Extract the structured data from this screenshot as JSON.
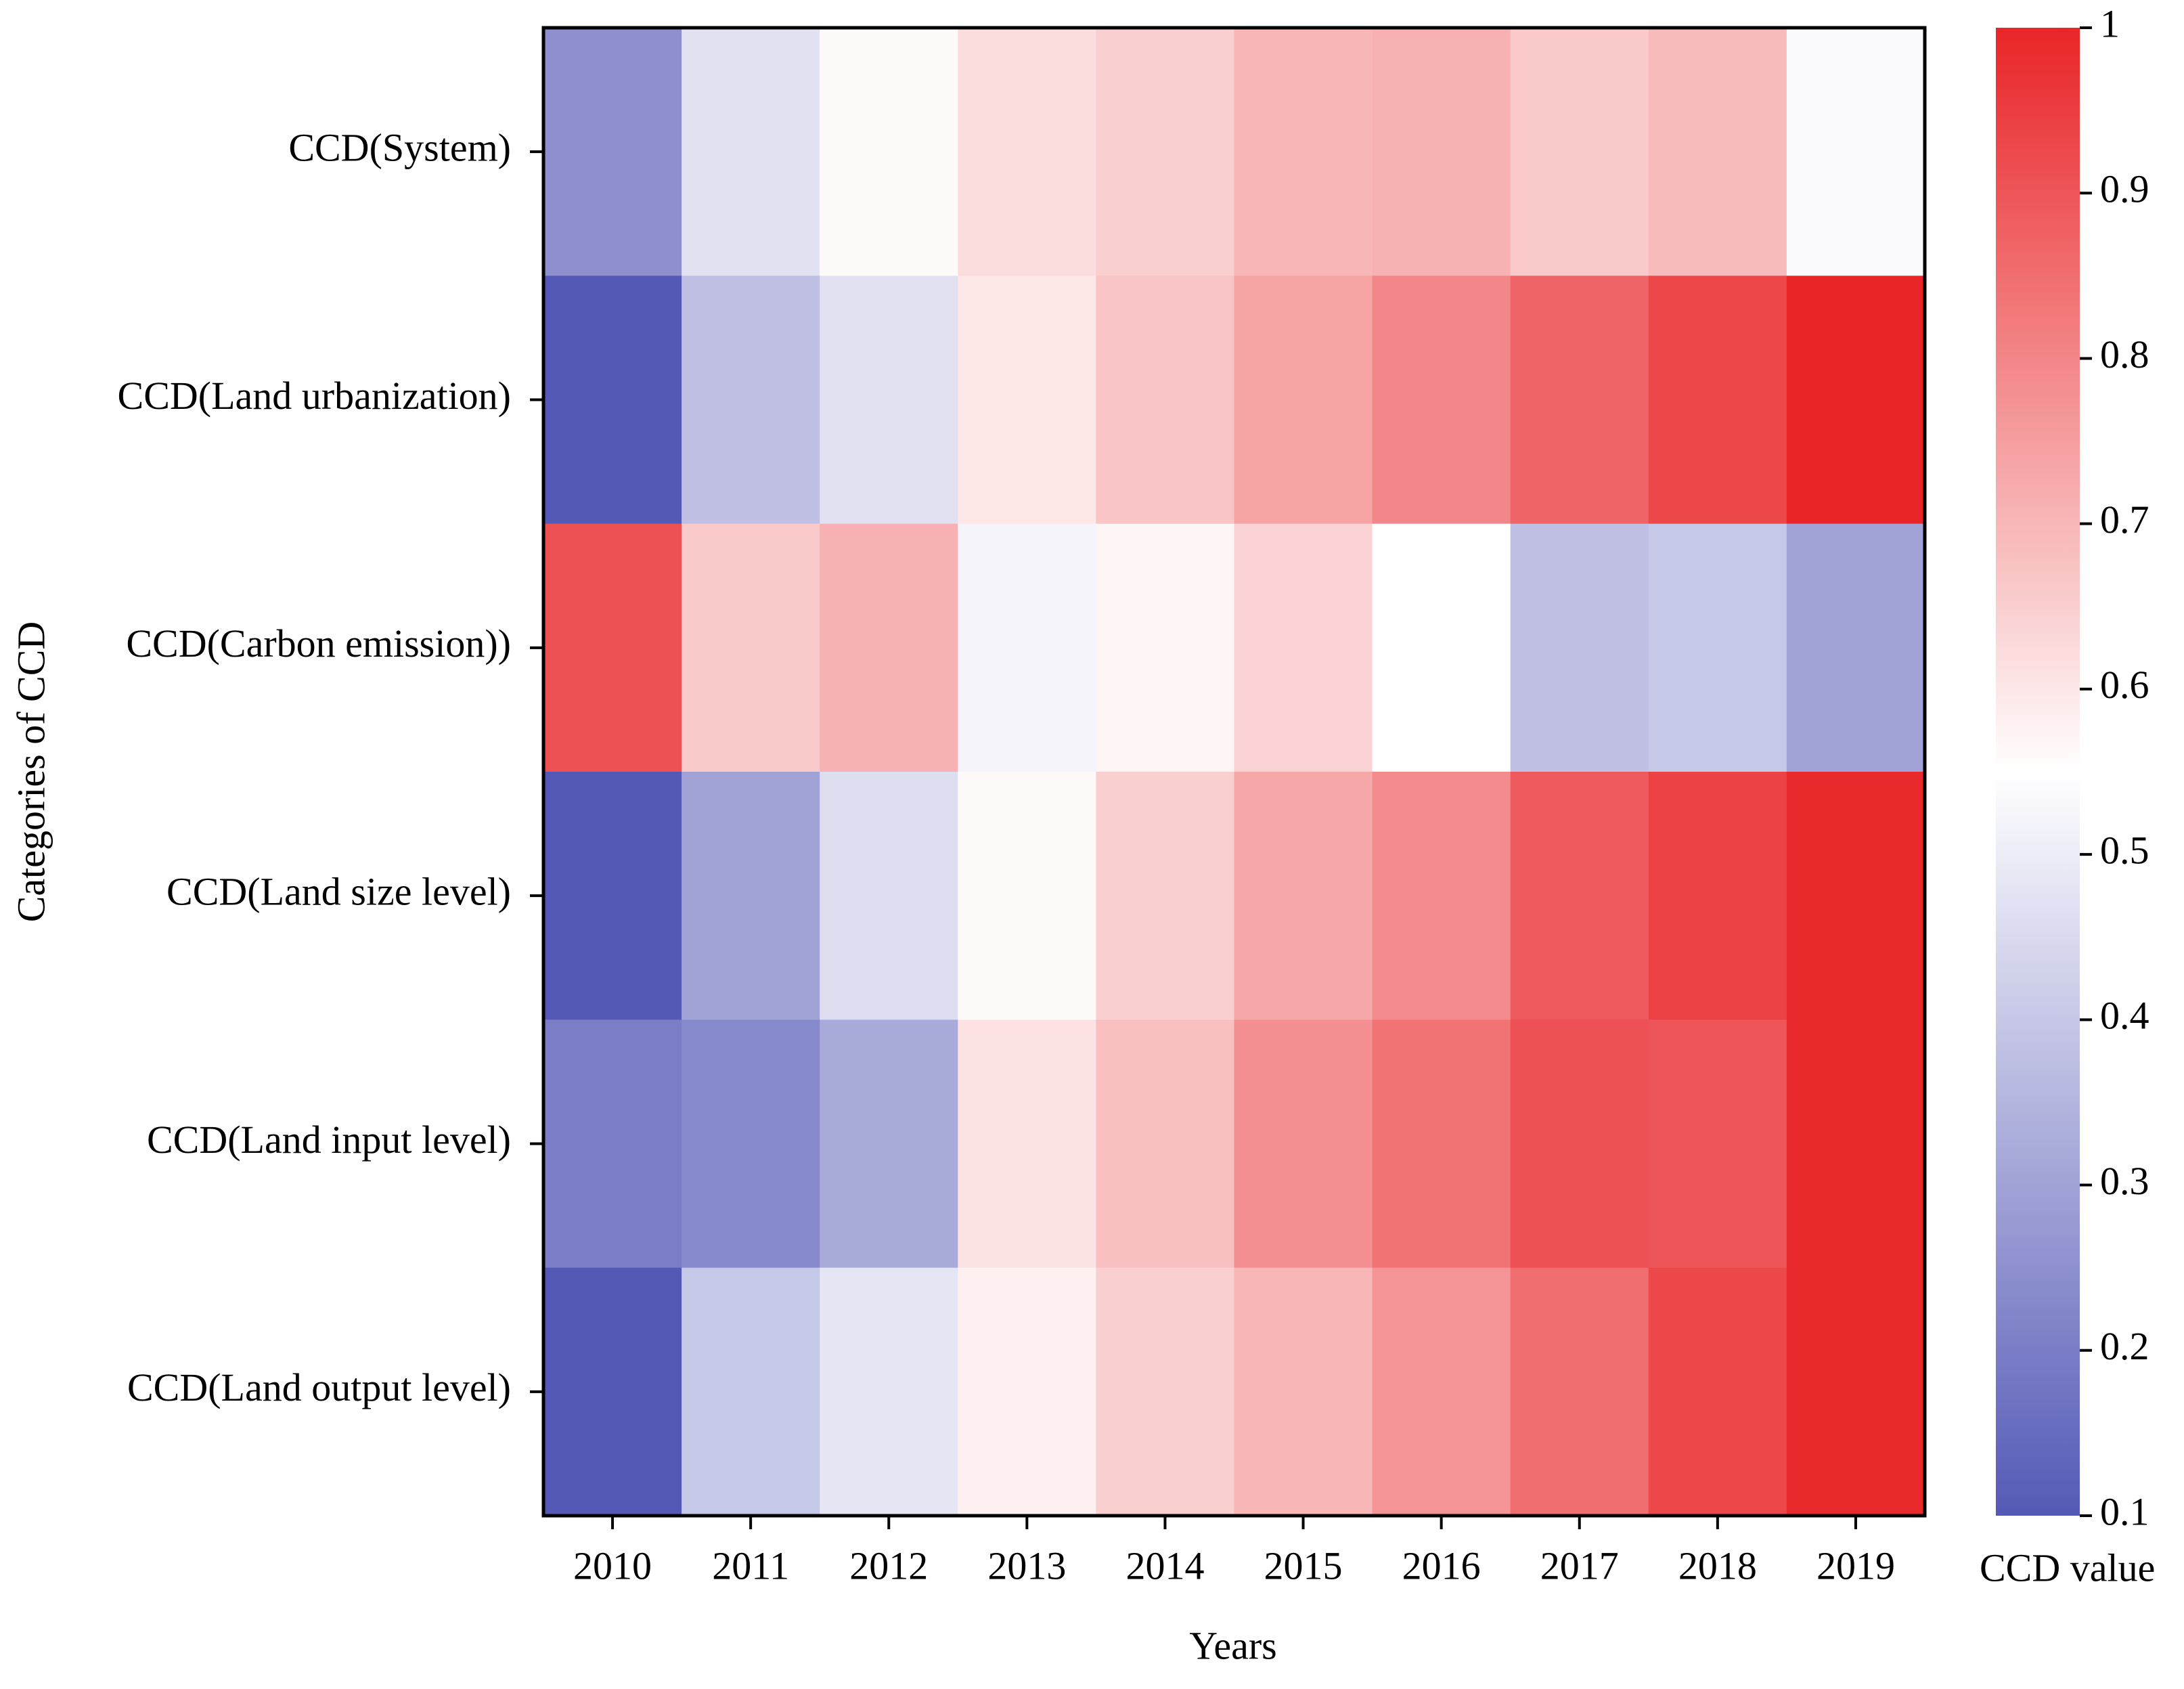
{
  "chart_data": {
    "type": "heatmap",
    "xlabel": "Years",
    "ylabel": "Categories of CCD",
    "x": [
      "2010",
      "2011",
      "2012",
      "2013",
      "2014",
      "2015",
      "2016",
      "2017",
      "2018",
      "2019"
    ],
    "y": [
      "CCD(System)",
      "CCD(Land urbanization)",
      "CCD(Carbon emission))",
      "CCD(Land size level)",
      "CCD(Land input level)",
      "CCD(Land output level)"
    ],
    "values": [
      [
        0.25,
        0.47,
        0.56,
        0.62,
        0.65,
        0.7,
        0.71,
        0.66,
        0.69,
        0.54
      ],
      [
        0.1,
        0.38,
        0.47,
        0.6,
        0.67,
        0.74,
        0.8,
        0.87,
        0.93,
        1.0
      ],
      [
        0.91,
        0.66,
        0.71,
        0.52,
        0.57,
        0.64,
        0.55,
        0.38,
        0.4,
        0.3
      ],
      [
        0.1,
        0.3,
        0.46,
        0.56,
        0.65,
        0.73,
        0.79,
        0.89,
        0.94,
        0.99
      ],
      [
        0.2,
        0.23,
        0.32,
        0.61,
        0.68,
        0.78,
        0.84,
        0.91,
        0.9,
        0.99
      ],
      [
        0.1,
        0.4,
        0.48,
        0.58,
        0.65,
        0.7,
        0.77,
        0.85,
        0.93,
        0.99
      ]
    ],
    "colorbar": {
      "label": "CCD value",
      "lim": [
        0.1,
        1
      ],
      "ticks": [
        0.1,
        0.2,
        0.3,
        0.4,
        0.5,
        0.6,
        0.7,
        0.8,
        0.9,
        1
      ],
      "colors": [
        "#5559b6",
        "#ffffff",
        "#e92528"
      ]
    }
  }
}
